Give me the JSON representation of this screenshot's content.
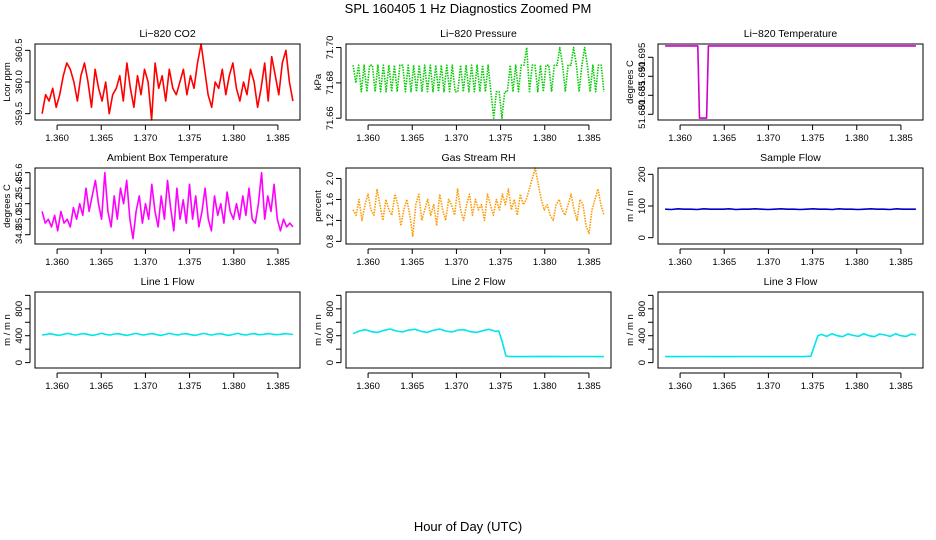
{
  "figure": {
    "title": "SPL  160405  1 Hz Diagnostics Zoomed PM",
    "xlabel": "Hour of Day (UTC)"
  },
  "chart_data": [
    {
      "id": "co2",
      "type": "line",
      "title": "Li−820 CO2",
      "ylabel": "Lcor ppm",
      "color": "#ff0000",
      "line_style": "solid",
      "xlim": [
        1.3575,
        1.3875
      ],
      "ylim": [
        359.4,
        360.6
      ],
      "xticks": [
        1.36,
        1.365,
        1.37,
        1.375,
        1.38,
        1.385
      ],
      "xtick_labels": [
        "1.360",
        "1.365",
        "1.370",
        "1.375",
        "1.380",
        "1.385"
      ],
      "yticks": [
        359.5,
        360.0,
        360.5
      ],
      "ytick_labels": [
        "359.5",
        "360.0",
        "360.5"
      ],
      "x_start": 1.3583,
      "x_end": 1.3867,
      "values": [
        359.5,
        359.8,
        359.7,
        359.9,
        359.6,
        359.8,
        360.1,
        360.3,
        360.2,
        360.0,
        359.7,
        360.1,
        360.3,
        360.0,
        359.6,
        360.2,
        359.9,
        359.7,
        360.0,
        359.5,
        359.8,
        359.9,
        360.1,
        359.7,
        360.3,
        359.9,
        359.6,
        360.1,
        359.8,
        360.2,
        360.0,
        359.4,
        360.3,
        359.9,
        360.1,
        359.7,
        360.2,
        359.9,
        359.8,
        360.0,
        360.2,
        359.8,
        360.1,
        359.9,
        360.3,
        360.6,
        360.2,
        359.8,
        359.6,
        360.0,
        359.9,
        360.2,
        359.8,
        360.1,
        360.3,
        359.9,
        359.7,
        360.0,
        359.8,
        360.2,
        360.0,
        359.6,
        359.9,
        360.3,
        359.7,
        360.4,
        360.1,
        359.8,
        360.3,
        360.5,
        360.0,
        359.7
      ]
    },
    {
      "id": "pressure",
      "type": "line",
      "title": "Li−820 Pressure",
      "ylabel": "kPa",
      "color": "#00cc00",
      "line_style": "dotted",
      "xlim": [
        1.3575,
        1.3875
      ],
      "ylim": [
        71.659,
        71.702
      ],
      "xticks": [
        1.36,
        1.365,
        1.37,
        1.375,
        1.38,
        1.385
      ],
      "xtick_labels": [
        "1.360",
        "1.365",
        "1.370",
        "1.375",
        "1.380",
        "1.385"
      ],
      "yticks": [
        71.66,
        71.68,
        71.7
      ],
      "ytick_labels": [
        "71.66",
        "71.68",
        "71.70"
      ],
      "x_start": 1.3583,
      "x_end": 1.3867,
      "values": [
        71.69,
        71.68,
        71.69,
        71.675,
        71.69,
        71.675,
        71.69,
        71.69,
        71.675,
        71.69,
        71.675,
        71.69,
        71.675,
        71.69,
        71.675,
        71.69,
        71.675,
        71.69,
        71.69,
        71.675,
        71.69,
        71.675,
        71.69,
        71.675,
        71.69,
        71.675,
        71.69,
        71.675,
        71.69,
        71.675,
        71.69,
        71.675,
        71.69,
        71.675,
        71.69,
        71.675,
        71.69,
        71.675,
        71.675,
        71.69,
        71.675,
        71.69,
        71.675,
        71.69,
        71.675,
        71.69,
        71.675,
        71.69,
        71.675,
        71.69,
        71.675,
        71.66,
        71.675,
        71.675,
        71.66,
        71.675,
        71.675,
        71.69,
        71.675,
        71.69,
        71.675,
        71.69,
        71.69,
        71.7,
        71.675,
        71.69,
        71.69,
        71.675,
        71.69,
        71.675,
        71.69,
        71.69,
        71.675,
        71.69,
        71.69,
        71.7,
        71.69,
        71.675,
        71.69,
        71.69,
        71.7,
        71.69,
        71.675,
        71.69,
        71.7,
        71.69,
        71.675,
        71.69,
        71.675,
        71.69,
        71.69,
        71.675
      ]
    },
    {
      "id": "temperature",
      "type": "line",
      "title": "Li−820 Temperature",
      "ylabel": "degrees C",
      "color": "#cc00cc",
      "line_style": "solid",
      "xlim": [
        1.3575,
        1.3875
      ],
      "ylim": [
        51.6785,
        51.6985
      ],
      "xticks": [
        1.36,
        1.365,
        1.37,
        1.375,
        1.38,
        1.385
      ],
      "xtick_labels": [
        "1.360",
        "1.365",
        "1.370",
        "1.375",
        "1.380",
        "1.385"
      ],
      "yticks": [
        51.68,
        51.685,
        51.69,
        51.695
      ],
      "ytick_labels": [
        "51.680",
        "51.685",
        "51.690",
        "51.695"
      ],
      "x": [
        1.3583,
        1.362,
        1.3622,
        1.363,
        1.3632,
        1.3867
      ],
      "y": [
        51.698,
        51.698,
        51.679,
        51.679,
        51.698,
        51.698
      ]
    },
    {
      "id": "ambient",
      "type": "line",
      "title": "Ambient Box Temperature",
      "ylabel": "degrees C",
      "color": "#ff00ff",
      "line_style": "solid",
      "xlim": [
        1.3575,
        1.3875
      ],
      "ylim": [
        34.68,
        35.66
      ],
      "xticks": [
        1.36,
        1.365,
        1.37,
        1.375,
        1.38,
        1.385
      ],
      "xtick_labels": [
        "1.360",
        "1.365",
        "1.370",
        "1.375",
        "1.380",
        "1.385"
      ],
      "yticks": [
        34.8,
        35.0,
        35.2,
        35.4,
        35.6
      ],
      "ytick_labels": [
        "34.8",
        "35.0",
        "35.2",
        "35.4",
        "35.6"
      ],
      "x_start": 1.3583,
      "x_end": 1.3867,
      "values": [
        35.1,
        34.95,
        35.0,
        34.9,
        35.05,
        34.85,
        35.1,
        34.95,
        35.0,
        34.9,
        35.15,
        35.0,
        35.2,
        35.05,
        35.4,
        35.1,
        35.3,
        35.5,
        35.2,
        35.0,
        35.6,
        35.1,
        34.9,
        35.3,
        35.0,
        35.4,
        35.2,
        35.5,
        35.0,
        34.75,
        35.1,
        35.3,
        34.95,
        35.2,
        35.0,
        35.45,
        35.1,
        34.9,
        35.3,
        35.0,
        35.5,
        35.15,
        34.85,
        35.4,
        35.0,
        35.25,
        34.95,
        35.45,
        35.0,
        35.3,
        34.9,
        35.1,
        35.4,
        35.0,
        34.85,
        35.3,
        35.05,
        35.2,
        34.95,
        35.35,
        35.1,
        35.0,
        35.2,
        35.0,
        35.3,
        35.05,
        35.4,
        35.0,
        34.95,
        35.2,
        35.6,
        35.0,
        35.3,
        35.1,
        35.45,
        35.0,
        34.85,
        35.0,
        34.9,
        34.95,
        34.9
      ]
    },
    {
      "id": "rh",
      "type": "line",
      "title": "Gas Stream RH",
      "ylabel": "percent",
      "color": "#ff9900",
      "line_style": "dotted",
      "xlim": [
        1.3575,
        1.3875
      ],
      "ylim": [
        0.75,
        2.2
      ],
      "xticks": [
        1.36,
        1.365,
        1.37,
        1.375,
        1.38,
        1.385
      ],
      "xtick_labels": [
        "1.360",
        "1.365",
        "1.370",
        "1.375",
        "1.380",
        "1.385"
      ],
      "yticks": [
        0.8,
        1.2,
        1.6,
        2.0
      ],
      "ytick_labels": [
        "0.8",
        "1.2",
        "1.6",
        "2.0"
      ],
      "x_start": 1.3583,
      "x_end": 1.3867,
      "values": [
        1.4,
        1.3,
        1.6,
        1.2,
        1.5,
        1.7,
        1.4,
        1.3,
        1.8,
        1.5,
        1.2,
        1.6,
        1.4,
        1.3,
        1.7,
        1.5,
        1.1,
        1.4,
        1.6,
        1.3,
        0.9,
        1.5,
        1.7,
        1.2,
        1.4,
        1.6,
        1.3,
        1.5,
        1.1,
        1.7,
        1.4,
        1.2,
        1.6,
        1.5,
        1.3,
        1.8,
        1.4,
        1.2,
        1.5,
        1.7,
        1.3,
        1.6,
        1.4,
        1.5,
        1.2,
        1.7,
        1.5,
        1.3,
        1.6,
        1.4,
        1.7,
        1.5,
        1.8,
        1.4,
        1.6,
        1.3,
        1.7,
        1.5,
        1.6,
        1.8,
        2.0,
        2.2,
        1.9,
        1.6,
        1.4,
        1.5,
        1.3,
        1.2,
        1.5,
        1.6,
        1.4,
        1.3,
        1.5,
        1.7,
        1.4,
        1.2,
        1.6,
        1.5,
        1.1,
        0.95,
        1.4,
        1.6,
        1.8,
        1.5,
        1.3
      ]
    },
    {
      "id": "sample_flow",
      "type": "line",
      "title": "Sample Flow",
      "ylabel": "m / m n",
      "color": "#0000cc",
      "line_style": "solid",
      "xlim": [
        1.3575,
        1.3875
      ],
      "ylim": [
        -20,
        220
      ],
      "xticks": [
        1.36,
        1.365,
        1.37,
        1.375,
        1.38,
        1.385
      ],
      "xtick_labels": [
        "1.360",
        "1.365",
        "1.370",
        "1.375",
        "1.380",
        "1.385"
      ],
      "yticks": [
        0,
        100,
        200
      ],
      "ytick_labels": [
        "0",
        "100",
        "200"
      ],
      "x_start": 1.3583,
      "x_end": 1.3867,
      "values": [
        90,
        89,
        91,
        90,
        90,
        89,
        91,
        90,
        90,
        90,
        91,
        89,
        90,
        90,
        91,
        90,
        89,
        90,
        91,
        90,
        90,
        89,
        90,
        91,
        90,
        90,
        89,
        91,
        90,
        90,
        89,
        90,
        91,
        90,
        90,
        89,
        91,
        90,
        90,
        90
      ]
    },
    {
      "id": "line1",
      "type": "line",
      "title": "Line 1 Flow",
      "ylabel": "m / m n",
      "color": "#00e5ee",
      "line_style": "solid",
      "xlim": [
        1.3575,
        1.3875
      ],
      "ylim": [
        -80,
        1050
      ],
      "xticks": [
        1.36,
        1.365,
        1.37,
        1.375,
        1.38,
        1.385
      ],
      "xtick_labels": [
        "1.360",
        "1.365",
        "1.370",
        "1.375",
        "1.380",
        "1.385"
      ],
      "yticks": [
        0,
        200,
        400,
        600,
        800,
        1000
      ],
      "ytick_labels": [
        "0",
        "",
        "400",
        "",
        "800",
        ""
      ],
      "x_start": 1.3583,
      "x_end": 1.3867,
      "values": [
        410,
        420,
        430,
        415,
        405,
        420,
        435,
        420,
        410,
        425,
        430,
        415,
        405,
        420,
        435,
        420,
        410,
        425,
        430,
        415,
        405,
        420,
        435,
        420,
        410,
        425,
        430,
        415,
        405,
        420,
        435,
        420,
        410,
        425,
        430,
        415,
        405,
        420,
        435,
        420,
        410,
        425,
        430,
        415,
        405,
        420,
        435,
        420,
        410,
        425,
        430,
        415,
        420,
        430,
        425,
        415,
        420,
        430,
        425,
        420
      ]
    },
    {
      "id": "line2",
      "type": "line",
      "title": "Line 2 Flow",
      "ylabel": "m / m n",
      "color": "#00e5ee",
      "line_style": "solid",
      "xlim": [
        1.3575,
        1.3875
      ],
      "ylim": [
        -80,
        1050
      ],
      "xticks": [
        1.36,
        1.365,
        1.37,
        1.375,
        1.38,
        1.385
      ],
      "xtick_labels": [
        "1.360",
        "1.365",
        "1.370",
        "1.375",
        "1.380",
        "1.385"
      ],
      "yticks": [
        0,
        200,
        400,
        600,
        800,
        1000
      ],
      "ytick_labels": [
        "0",
        "",
        "400",
        "",
        "800",
        ""
      ],
      "x": [
        1.3583,
        1.359,
        1.3597,
        1.3604,
        1.3611,
        1.3618,
        1.3625,
        1.3632,
        1.3639,
        1.3646,
        1.3653,
        1.366,
        1.3667,
        1.3674,
        1.3681,
        1.3688,
        1.3695,
        1.3702,
        1.3709,
        1.3716,
        1.3723,
        1.373,
        1.3737,
        1.3744,
        1.3748,
        1.3752,
        1.3756,
        1.376,
        1.378,
        1.38,
        1.382,
        1.384,
        1.386,
        1.3867
      ],
      "y": [
        430,
        470,
        490,
        460,
        450,
        480,
        500,
        470,
        455,
        485,
        495,
        465,
        450,
        480,
        500,
        470,
        455,
        485,
        490,
        460,
        450,
        475,
        495,
        465,
        470,
        300,
        100,
        90,
        90,
        92,
        90,
        91,
        90,
        90
      ]
    },
    {
      "id": "line3",
      "type": "line",
      "title": "Line 3 Flow",
      "ylabel": "m / m n",
      "color": "#00e5ee",
      "line_style": "solid",
      "xlim": [
        1.3575,
        1.3875
      ],
      "ylim": [
        -80,
        1050
      ],
      "xticks": [
        1.36,
        1.365,
        1.37,
        1.375,
        1.38,
        1.385
      ],
      "xtick_labels": [
        "1.360",
        "1.365",
        "1.370",
        "1.375",
        "1.380",
        "1.385"
      ],
      "yticks": [
        0,
        200,
        400,
        600,
        800,
        1000
      ],
      "ytick_labels": [
        "0",
        "",
        "400",
        "",
        "800",
        ""
      ],
      "x": [
        1.3583,
        1.36,
        1.362,
        1.364,
        1.366,
        1.368,
        1.37,
        1.372,
        1.374,
        1.3748,
        1.3752,
        1.3756,
        1.376,
        1.3766,
        1.3772,
        1.3778,
        1.3784,
        1.379,
        1.3796,
        1.3802,
        1.3808,
        1.3814,
        1.382,
        1.3826,
        1.3832,
        1.3838,
        1.3844,
        1.385,
        1.3856,
        1.3862,
        1.3867
      ],
      "y": [
        90,
        90,
        91,
        90,
        90,
        91,
        90,
        90,
        90,
        95,
        250,
        400,
        420,
        390,
        430,
        400,
        385,
        425,
        405,
        390,
        430,
        400,
        385,
        425,
        410,
        390,
        430,
        400,
        390,
        425,
        410
      ]
    }
  ]
}
